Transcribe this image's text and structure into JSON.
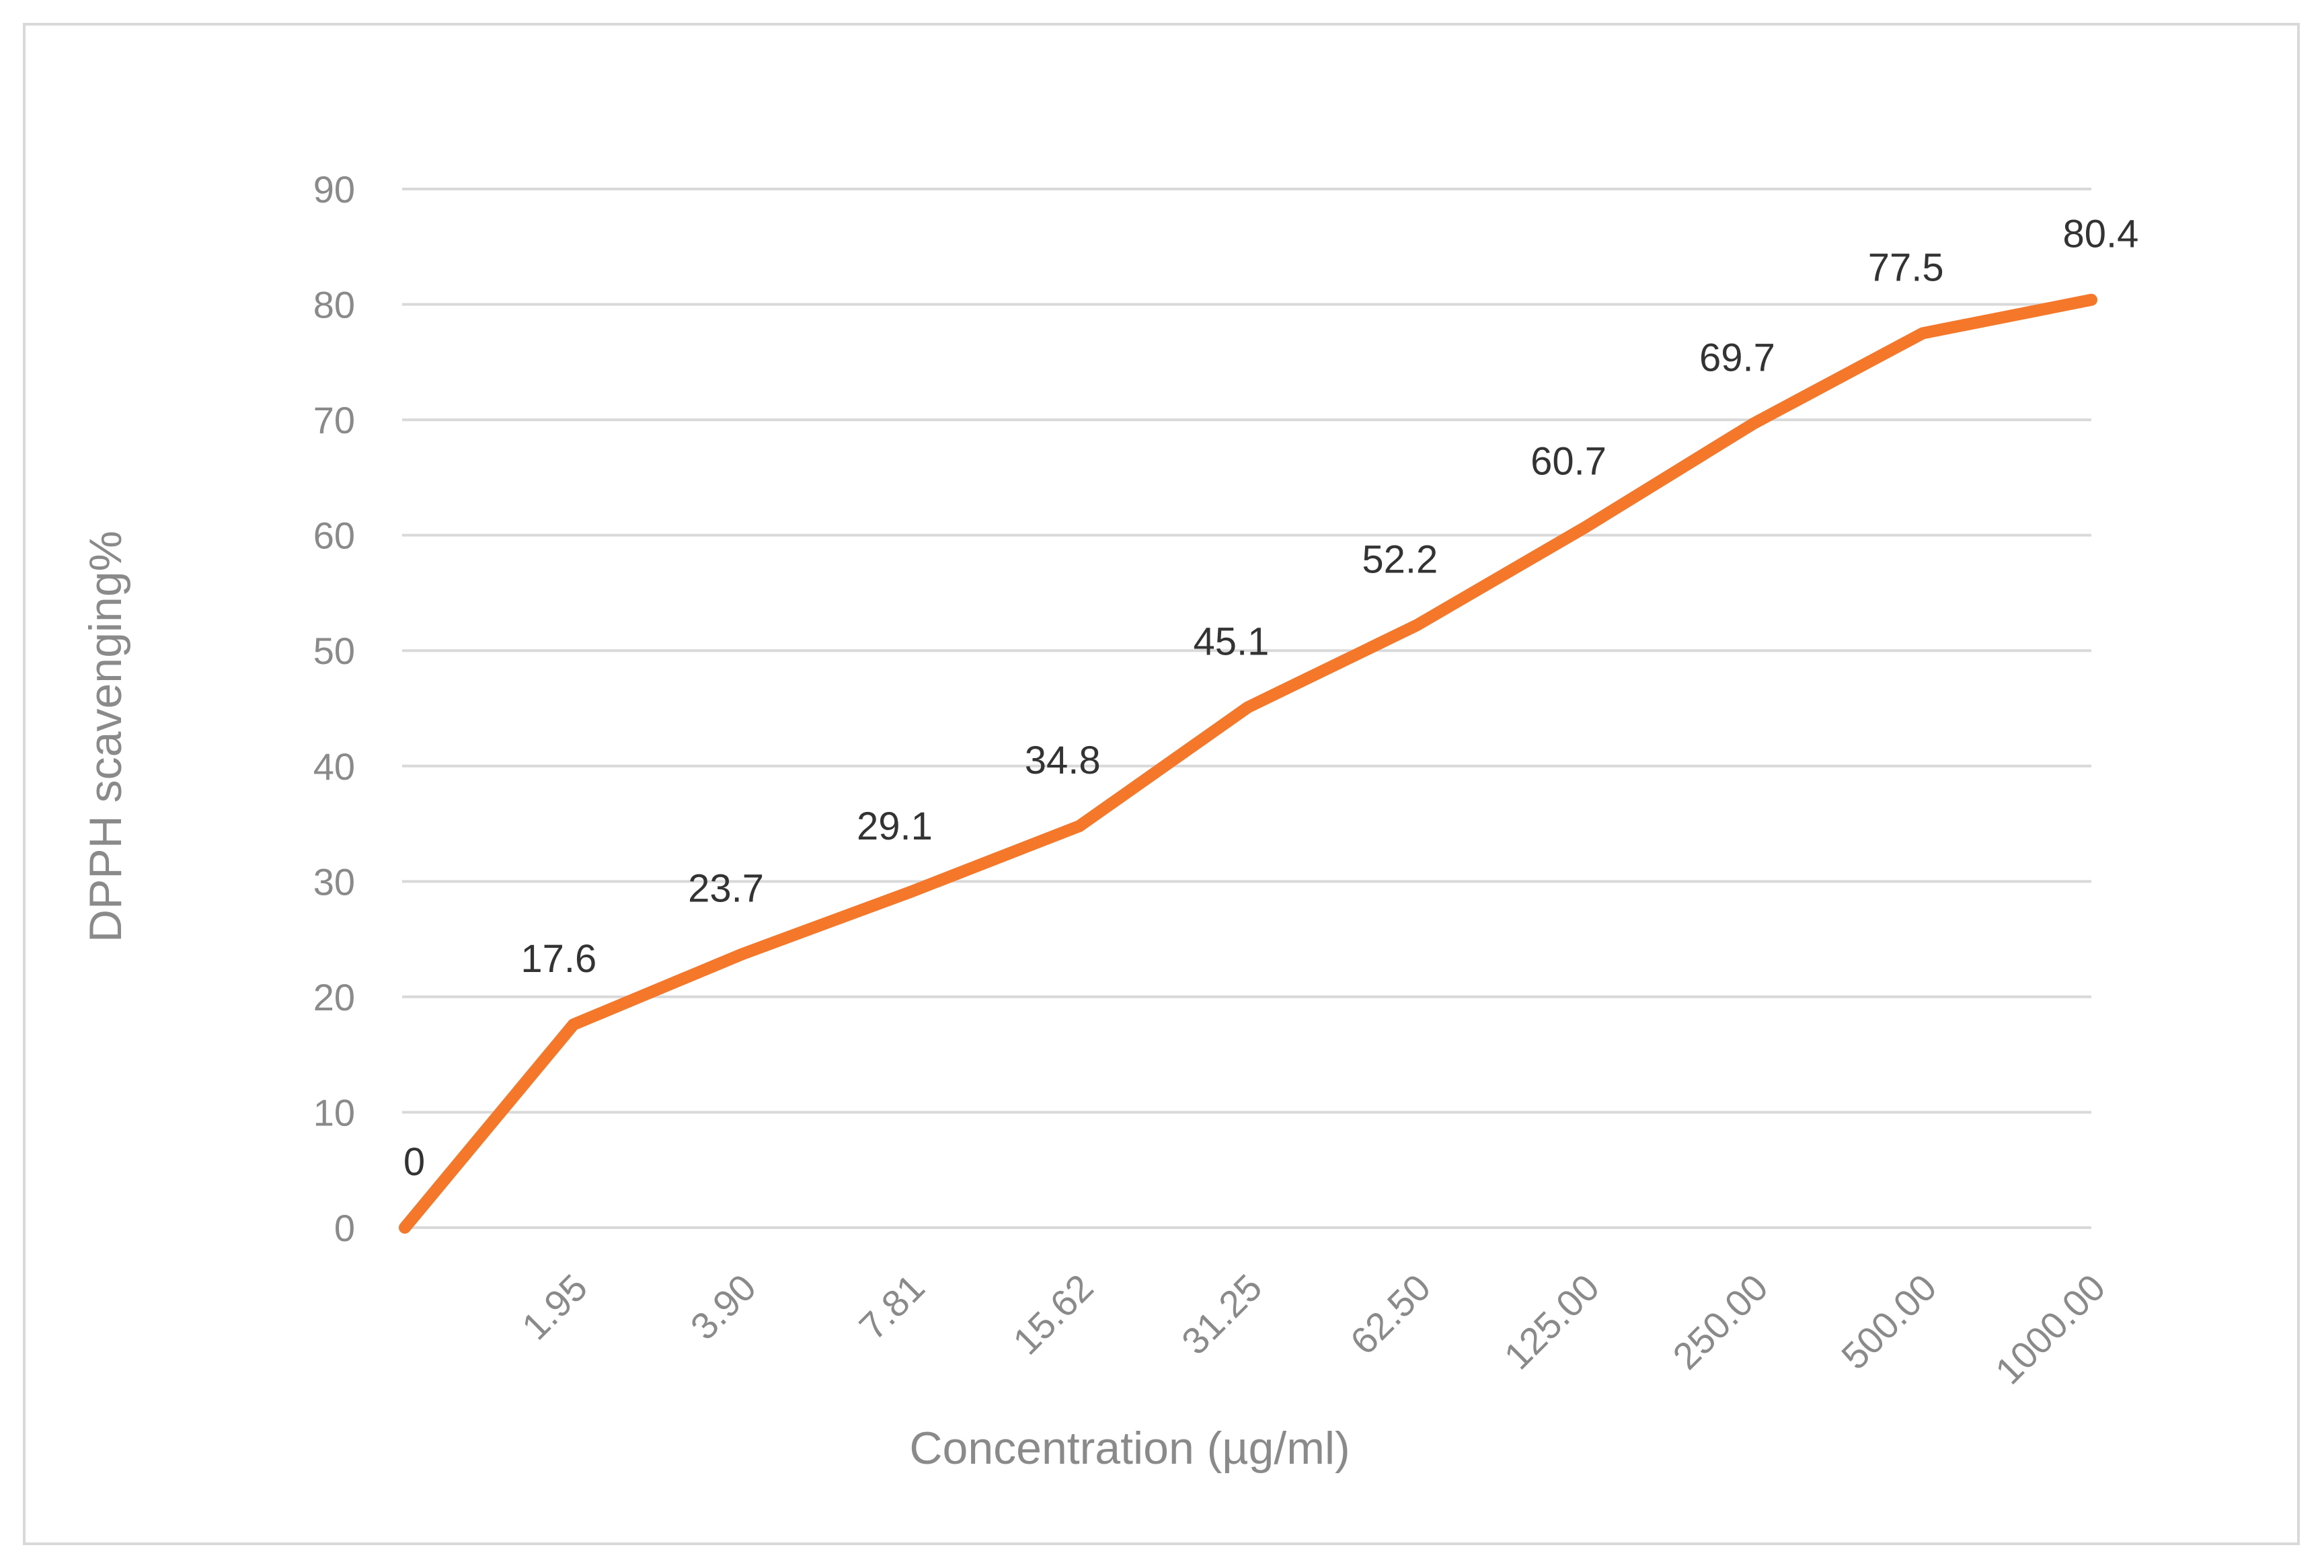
{
  "chart_data": {
    "type": "line",
    "xlabel": "Concentration (µg/ml)",
    "ylabel": "DPPH scavenging%",
    "ylim": [
      0,
      90
    ],
    "yticks": [
      "0",
      "10",
      "20",
      "30",
      "40",
      "50",
      "60",
      "70",
      "80",
      "90"
    ],
    "categories": [
      "",
      "1.95",
      "3.90",
      "7.81",
      "15.62",
      "31.25",
      "62.50",
      "125.00",
      "250.00",
      "500.00",
      "1000.00"
    ],
    "series": [
      {
        "values": [
          0,
          17.6,
          23.7,
          29.1,
          34.8,
          45.1,
          52.2,
          60.7,
          69.7,
          77.5,
          80.4
        ],
        "labels": [
          "0",
          "17.6",
          "23.7",
          "29.1",
          "34.8",
          "45.1",
          "52.2",
          "60.7",
          "69.7",
          "77.5",
          "80.4"
        ],
        "color": "#F4772A"
      }
    ],
    "grid": true,
    "gridColor": "#d9d9d9",
    "legend": "none"
  }
}
